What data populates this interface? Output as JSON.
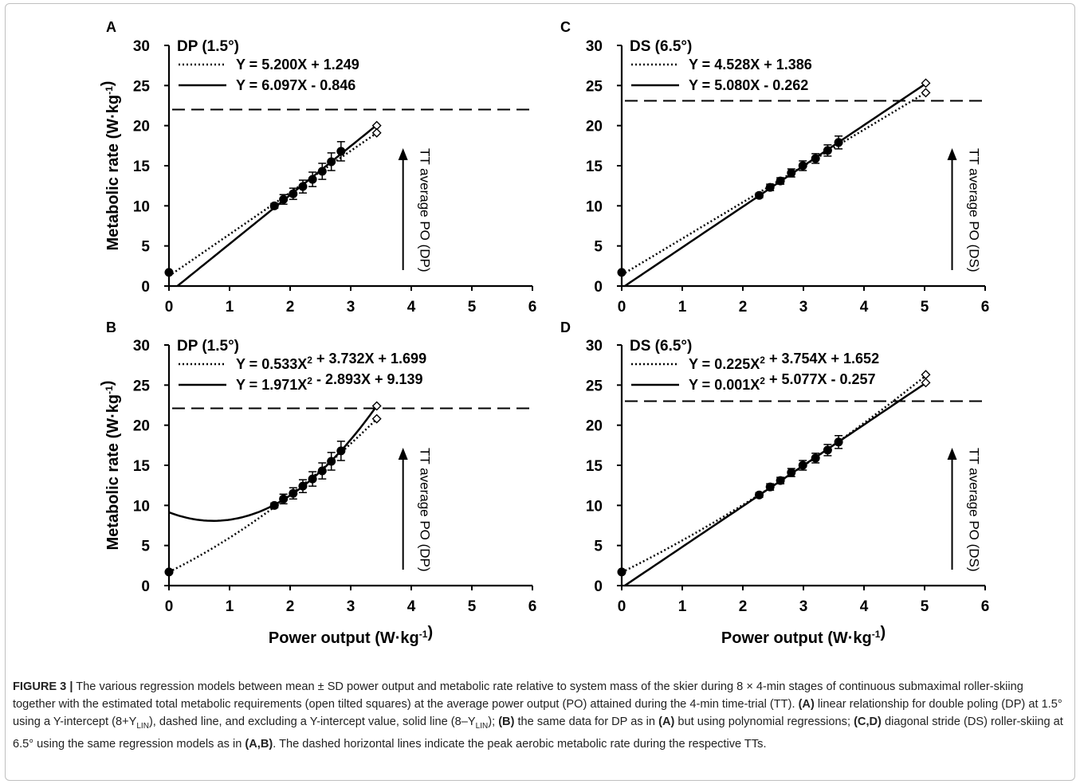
{
  "chart_data": [
    {
      "type": "scatter",
      "panel_label": "A",
      "title": "DP (1.5°)",
      "ylabel": "Metabolic rate (W·kg-1)",
      "xlabel": "",
      "xlim": [
        0,
        6
      ],
      "ylim": [
        0,
        30
      ],
      "x_ticks": [
        "0",
        "1",
        "2",
        "3",
        "4",
        "5",
        "6"
      ],
      "y_ticks": [
        "0",
        "5",
        "10",
        "15",
        "20",
        "25",
        "30"
      ],
      "legend": [
        {
          "style": "dotted",
          "label": "Y = 5.200X + 1.249"
        },
        {
          "style": "solid",
          "label": "Y = 6.097X - 0.846"
        }
      ],
      "fits": [
        {
          "style": "dotted",
          "kind": "linear",
          "coef": [
            5.2,
            1.249
          ],
          "x_range": [
            0,
            3.43
          ]
        },
        {
          "style": "solid",
          "kind": "linear",
          "coef": [
            6.097,
            -0.846
          ],
          "x_range": [
            0.139,
            3.43
          ]
        }
      ],
      "points": [
        {
          "x": 1.74,
          "y": 10.0,
          "sd": 0.3
        },
        {
          "x": 1.89,
          "y": 10.8,
          "sd": 0.6
        },
        {
          "x": 2.05,
          "y": 11.5,
          "sd": 0.7
        },
        {
          "x": 2.21,
          "y": 12.4,
          "sd": 0.8
        },
        {
          "x": 2.37,
          "y": 13.3,
          "sd": 0.9
        },
        {
          "x": 2.53,
          "y": 14.3,
          "sd": 1.0
        },
        {
          "x": 2.68,
          "y": 15.5,
          "sd": 1.1
        },
        {
          "x": 2.84,
          "y": 16.8,
          "sd": 1.2
        }
      ],
      "intercept_point": {
        "x": 0,
        "y": 1.7
      },
      "tt_points": [
        {
          "x": 3.43,
          "y": 20.0
        },
        {
          "x": 3.43,
          "y": 19.1
        }
      ],
      "peak_line_y": 22.0,
      "arrow_x": 3.43,
      "arrow_label": "TT average PO (DP)"
    },
    {
      "type": "scatter",
      "panel_label": "C",
      "title": "DS (6.5°)",
      "ylabel": "",
      "xlabel": "",
      "xlim": [
        0,
        6
      ],
      "ylim": [
        0,
        30
      ],
      "x_ticks": [
        "0",
        "1",
        "2",
        "3",
        "4",
        "5",
        "6"
      ],
      "y_ticks": [
        "0",
        "5",
        "10",
        "15",
        "20",
        "25",
        "30"
      ],
      "legend": [
        {
          "style": "dotted",
          "label": "Y = 4.528X + 1.386"
        },
        {
          "style": "solid",
          "label": "Y = 5.080X - 0.262"
        }
      ],
      "fits": [
        {
          "style": "dotted",
          "kind": "linear",
          "coef": [
            4.528,
            1.386
          ],
          "x_range": [
            0,
            5.02
          ]
        },
        {
          "style": "solid",
          "kind": "linear",
          "coef": [
            5.08,
            -0.262
          ],
          "x_range": [
            0.052,
            5.02
          ]
        }
      ],
      "points": [
        {
          "x": 2.27,
          "y": 11.3,
          "sd": 0.3
        },
        {
          "x": 2.45,
          "y": 12.3,
          "sd": 0.4
        },
        {
          "x": 2.62,
          "y": 13.1,
          "sd": 0.4
        },
        {
          "x": 2.8,
          "y": 14.1,
          "sd": 0.5
        },
        {
          "x": 2.99,
          "y": 15.0,
          "sd": 0.6
        },
        {
          "x": 3.2,
          "y": 15.9,
          "sd": 0.6
        },
        {
          "x": 3.4,
          "y": 16.9,
          "sd": 0.7
        },
        {
          "x": 3.58,
          "y": 17.9,
          "sd": 0.8
        }
      ],
      "intercept_point": {
        "x": 0,
        "y": 1.7
      },
      "tt_points": [
        {
          "x": 5.02,
          "y": 25.3
        },
        {
          "x": 5.02,
          "y": 24.1
        }
      ],
      "peak_line_y": 23.1,
      "arrow_x": 5.02,
      "arrow_label": "TT average PO (DS)"
    },
    {
      "type": "scatter",
      "panel_label": "B",
      "title": "DP (1.5°)",
      "ylabel": "Metabolic rate (W·kg-1)",
      "xlabel": "Power output (W·kg-1)",
      "xlim": [
        0,
        6
      ],
      "ylim": [
        0,
        30
      ],
      "x_ticks": [
        "0",
        "1",
        "2",
        "3",
        "4",
        "5",
        "6"
      ],
      "y_ticks": [
        "0",
        "5",
        "10",
        "15",
        "20",
        "25",
        "30"
      ],
      "legend": [
        {
          "style": "dotted",
          "label": "Y = 0.533X2 + 3.732X + 1.699"
        },
        {
          "style": "solid",
          "label": "Y = 1.971X2 - 2.893X + 9.139"
        }
      ],
      "fits": [
        {
          "style": "dotted",
          "kind": "quadratic",
          "coef": [
            0.533,
            3.732,
            1.699
          ],
          "x_range": [
            0,
            3.43
          ]
        },
        {
          "style": "solid",
          "kind": "quadratic",
          "coef": [
            1.971,
            -2.893,
            9.139
          ],
          "x_range": [
            0,
            3.43
          ]
        }
      ],
      "points": [
        {
          "x": 1.74,
          "y": 10.0,
          "sd": 0.3
        },
        {
          "x": 1.89,
          "y": 10.8,
          "sd": 0.6
        },
        {
          "x": 2.05,
          "y": 11.5,
          "sd": 0.7
        },
        {
          "x": 2.21,
          "y": 12.4,
          "sd": 0.8
        },
        {
          "x": 2.37,
          "y": 13.3,
          "sd": 0.9
        },
        {
          "x": 2.53,
          "y": 14.3,
          "sd": 1.0
        },
        {
          "x": 2.68,
          "y": 15.5,
          "sd": 1.1
        },
        {
          "x": 2.84,
          "y": 16.8,
          "sd": 1.2
        }
      ],
      "intercept_point": {
        "x": 0,
        "y": 1.7
      },
      "tt_points": [
        {
          "x": 3.43,
          "y": 22.4
        },
        {
          "x": 3.43,
          "y": 20.8
        }
      ],
      "peak_line_y": 22.1,
      "arrow_x": 3.43,
      "arrow_label": "TT average PO (DP)"
    },
    {
      "type": "scatter",
      "panel_label": "D",
      "title": "DS (6.5°)",
      "ylabel": "",
      "xlabel": "Power output (W·kg-1)",
      "xlim": [
        0,
        6
      ],
      "ylim": [
        0,
        30
      ],
      "x_ticks": [
        "0",
        "1",
        "2",
        "3",
        "4",
        "5",
        "6"
      ],
      "y_ticks": [
        "0",
        "5",
        "10",
        "15",
        "20",
        "25",
        "30"
      ],
      "legend": [
        {
          "style": "dotted",
          "label": "Y = 0.225X2 + 3.754X + 1.652"
        },
        {
          "style": "solid",
          "label": "Y = 0.001X2 + 5.077X - 0.257"
        }
      ],
      "fits": [
        {
          "style": "dotted",
          "kind": "quadratic",
          "coef": [
            0.225,
            3.754,
            1.652
          ],
          "x_range": [
            0,
            5.02
          ]
        },
        {
          "style": "solid",
          "kind": "quadratic",
          "coef": [
            0.001,
            5.077,
            -0.257
          ],
          "x_range": [
            0.05,
            5.02
          ]
        }
      ],
      "points": [
        {
          "x": 2.27,
          "y": 11.3,
          "sd": 0.3
        },
        {
          "x": 2.45,
          "y": 12.3,
          "sd": 0.4
        },
        {
          "x": 2.62,
          "y": 13.1,
          "sd": 0.4
        },
        {
          "x": 2.8,
          "y": 14.1,
          "sd": 0.5
        },
        {
          "x": 2.99,
          "y": 15.0,
          "sd": 0.6
        },
        {
          "x": 3.2,
          "y": 15.9,
          "sd": 0.6
        },
        {
          "x": 3.4,
          "y": 16.9,
          "sd": 0.7
        },
        {
          "x": 3.58,
          "y": 17.9,
          "sd": 0.8
        }
      ],
      "intercept_point": {
        "x": 0,
        "y": 1.7
      },
      "tt_points": [
        {
          "x": 5.02,
          "y": 26.3
        },
        {
          "x": 5.02,
          "y": 25.3
        }
      ],
      "peak_line_y": 23.0,
      "arrow_x": 5.02,
      "arrow_label": "TT average PO (DS)"
    }
  ],
  "caption": {
    "label": "FIGURE 3 |",
    "parts": [
      {
        "b": false,
        "t": " The various regression models between mean ± SD power output and metabolic rate relative to system mass of the skier during 8 × 4-min stages of continuous submaximal roller-skiing together with the estimated total metabolic requirements (open tilted squares) at the average power output (PO) attained during the 4-min time-trial (TT). "
      },
      {
        "b": true,
        "t": "(A)"
      },
      {
        "b": false,
        "t": " linear relationship for double poling (DP) at 1.5° using a Y-intercept (8+Y"
      },
      {
        "b": false,
        "sub": true,
        "t": "LIN"
      },
      {
        "b": false,
        "t": "), dashed line, and excluding a Y-intercept value, solid line (8–Y"
      },
      {
        "b": false,
        "sub": true,
        "t": "LIN"
      },
      {
        "b": false,
        "t": "); "
      },
      {
        "b": true,
        "t": "(B)"
      },
      {
        "b": false,
        "t": " the same data for DP as in "
      },
      {
        "b": true,
        "t": "(A)"
      },
      {
        "b": false,
        "t": " but using polynomial regressions; "
      },
      {
        "b": true,
        "t": "(C,D)"
      },
      {
        "b": false,
        "t": " diagonal stride (DS) roller-skiing at 6.5° using the same regression models as in "
      },
      {
        "b": true,
        "t": "(A,B)"
      },
      {
        "b": false,
        "t": ". The dashed horizontal lines indicate the peak aerobic metabolic rate during the respective TTs."
      }
    ]
  }
}
